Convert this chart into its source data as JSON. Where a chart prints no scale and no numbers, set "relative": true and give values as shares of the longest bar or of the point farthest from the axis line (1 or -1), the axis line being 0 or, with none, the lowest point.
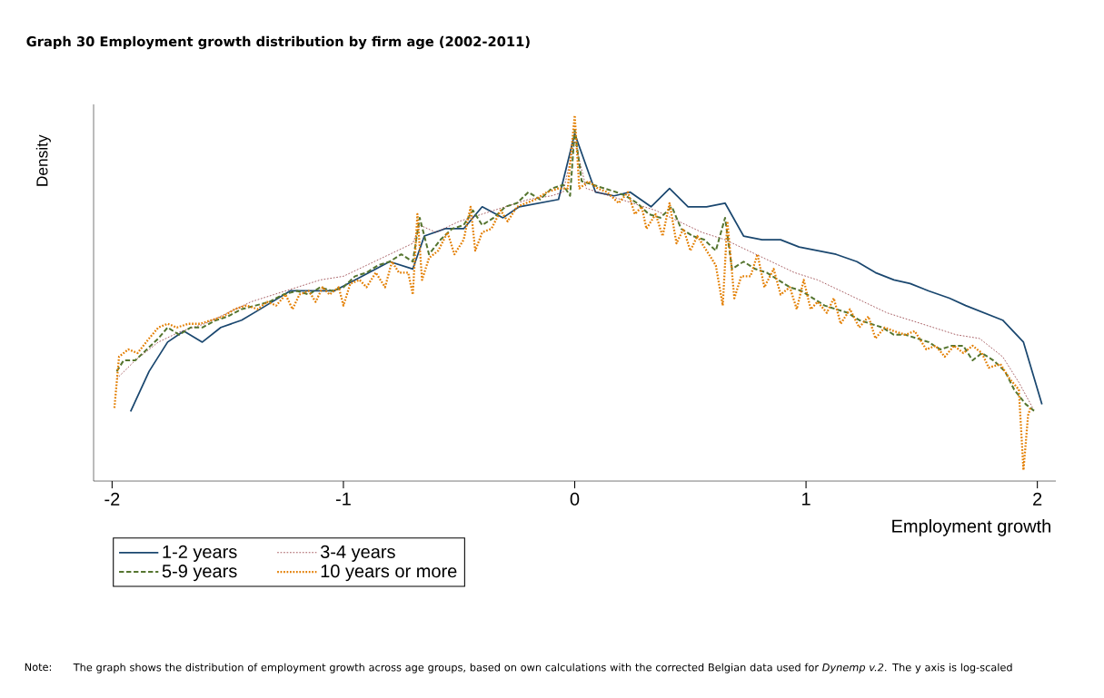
{
  "chart_data": {
    "type": "line",
    "title": "**Graph 30    Employment growth distribution by firm age (2002-2011)**",
    "xlabel": "Employment growth",
    "ylabel": "Density",
    "relative": true,
    "xlim": [
      -2.08,
      2.08
    ],
    "xticks": [
      -2,
      -1,
      0,
      1,
      2
    ],
    "legend": "bottom",
    "marker": "none",
    "annotations": [
      "Note:",
      "The graph shows the distribution of employment growth across age groups, based on own calculations with the corrected Belgian data used for *Dynemp v.2*. The y axis is log-scaled"
    ],
    "series": [
      {
        "name": "1-2 years",
        "color": "#1a476f",
        "line_style": "solid",
        "x": [
          -1.92,
          -1.84,
          -1.76,
          -1.69,
          -1.61,
          -1.53,
          -1.44,
          -1.36,
          -1.23,
          -1.04,
          -0.95,
          -0.8,
          -0.7,
          -0.65,
          -0.56,
          -0.48,
          -0.4,
          -0.31,
          -0.24,
          -0.07,
          0,
          0.09,
          0.17,
          0.24,
          0.33,
          0.41,
          0.49,
          0.57,
          0.65,
          0.73,
          0.81,
          0.89,
          0.97,
          1.05,
          1.13,
          1.22,
          1.3,
          1.38,
          1.45,
          1.53,
          1.62,
          1.69,
          1.77,
          1.85,
          1.94,
          2.02
        ],
        "values": [
          0.19,
          0.3,
          0.38,
          0.41,
          0.38,
          0.42,
          0.44,
          0.47,
          0.52,
          0.52,
          0.55,
          0.6,
          0.58,
          0.67,
          0.69,
          0.69,
          0.75,
          0.72,
          0.75,
          0.77,
          0.95,
          0.79,
          0.78,
          0.79,
          0.75,
          0.8,
          0.75,
          0.75,
          0.76,
          0.67,
          0.66,
          0.66,
          0.64,
          0.63,
          0.62,
          0.6,
          0.57,
          0.55,
          0.54,
          0.52,
          0.5,
          0.48,
          0.46,
          0.44,
          0.38,
          0.21
        ]
      },
      {
        "name": "3-4 years",
        "color": "#90353b",
        "line_style": "dotted",
        "x": [
          -1.98,
          -1.9,
          -1.8,
          -1.7,
          -1.6,
          -1.5,
          -1.4,
          -1.3,
          -1.2,
          -1.1,
          -1.0,
          -0.9,
          -0.8,
          -0.7,
          -0.67,
          -0.6,
          -0.5,
          -0.4,
          -0.3,
          -0.2,
          -0.1,
          -0.05,
          0,
          0.05,
          0.15,
          0.25,
          0.35,
          0.45,
          0.55,
          0.65,
          0.75,
          0.85,
          0.95,
          1.05,
          1.15,
          1.25,
          1.35,
          1.45,
          1.55,
          1.65,
          1.75,
          1.85,
          1.92,
          1.98
        ],
        "values": [
          0.28,
          0.33,
          0.38,
          0.41,
          0.43,
          0.46,
          0.49,
          0.51,
          0.53,
          0.55,
          0.56,
          0.59,
          0.62,
          0.65,
          0.7,
          0.68,
          0.71,
          0.73,
          0.75,
          0.77,
          0.78,
          0.79,
          0.93,
          0.8,
          0.78,
          0.76,
          0.74,
          0.71,
          0.68,
          0.66,
          0.63,
          0.6,
          0.57,
          0.55,
          0.52,
          0.49,
          0.46,
          0.44,
          0.42,
          0.4,
          0.39,
          0.34,
          0.27,
          0.2
        ]
      },
      {
        "name": "5-9 years",
        "color": "#55752f",
        "line_style": "dashed",
        "x": [
          -1.98,
          -1.95,
          -1.9,
          -1.85,
          -1.8,
          -1.76,
          -1.71,
          -1.66,
          -1.61,
          -1.55,
          -1.5,
          -1.44,
          -1.38,
          -1.32,
          -1.26,
          -1.2,
          -1.15,
          -1.1,
          -1.05,
          -1.0,
          -0.95,
          -0.9,
          -0.85,
          -0.8,
          -0.75,
          -0.7,
          -0.67,
          -0.63,
          -0.58,
          -0.53,
          -0.48,
          -0.44,
          -0.4,
          -0.35,
          -0.3,
          -0.25,
          -0.2,
          -0.15,
          -0.1,
          -0.05,
          -0.02,
          0,
          0.03,
          0.08,
          0.13,
          0.18,
          0.22,
          0.27,
          0.32,
          0.37,
          0.42,
          0.46,
          0.51,
          0.56,
          0.61,
          0.65,
          0.68,
          0.73,
          0.78,
          0.83,
          0.88,
          0.93,
          0.98,
          1.03,
          1.08,
          1.13,
          1.18,
          1.23,
          1.28,
          1.33,
          1.38,
          1.43,
          1.48,
          1.53,
          1.58,
          1.63,
          1.68,
          1.72,
          1.76,
          1.81,
          1.86,
          1.9,
          1.95,
          1.99
        ],
        "values": [
          0.3,
          0.33,
          0.33,
          0.36,
          0.39,
          0.42,
          0.4,
          0.42,
          0.42,
          0.44,
          0.45,
          0.47,
          0.48,
          0.49,
          0.51,
          0.52,
          0.51,
          0.53,
          0.52,
          0.53,
          0.56,
          0.57,
          0.59,
          0.6,
          0.62,
          0.6,
          0.72,
          0.62,
          0.66,
          0.69,
          0.7,
          0.74,
          0.7,
          0.72,
          0.75,
          0.76,
          0.79,
          0.77,
          0.8,
          0.81,
          0.78,
          0.96,
          0.82,
          0.81,
          0.8,
          0.79,
          0.78,
          0.76,
          0.73,
          0.72,
          0.75,
          0.69,
          0.67,
          0.66,
          0.63,
          0.72,
          0.58,
          0.6,
          0.58,
          0.57,
          0.55,
          0.53,
          0.52,
          0.5,
          0.48,
          0.47,
          0.46,
          0.44,
          0.43,
          0.42,
          0.4,
          0.4,
          0.39,
          0.38,
          0.36,
          0.37,
          0.37,
          0.33,
          0.35,
          0.33,
          0.3,
          0.25,
          0.21,
          0.19
        ]
      },
      {
        "name": "10 years or more",
        "color": "#e37e00",
        "line_style": "dotted",
        "x": [
          -1.99,
          -1.97,
          -1.93,
          -1.89,
          -1.84,
          -1.8,
          -1.76,
          -1.72,
          -1.67,
          -1.62,
          -1.57,
          -1.52,
          -1.47,
          -1.42,
          -1.37,
          -1.33,
          -1.29,
          -1.25,
          -1.22,
          -1.19,
          -1.15,
          -1.12,
          -1.09,
          -1.06,
          -1.02,
          -1.0,
          -0.97,
          -0.93,
          -0.9,
          -0.86,
          -0.82,
          -0.79,
          -0.76,
          -0.72,
          -0.7,
          -0.68,
          -0.66,
          -0.63,
          -0.59,
          -0.55,
          -0.52,
          -0.48,
          -0.45,
          -0.43,
          -0.4,
          -0.36,
          -0.32,
          -0.29,
          -0.25,
          -0.21,
          -0.17,
          -0.12,
          -0.07,
          -0.03,
          0,
          0.02,
          0.06,
          0.1,
          0.14,
          0.19,
          0.23,
          0.26,
          0.29,
          0.31,
          0.35,
          0.38,
          0.41,
          0.44,
          0.47,
          0.5,
          0.53,
          0.57,
          0.61,
          0.64,
          0.66,
          0.69,
          0.72,
          0.76,
          0.79,
          0.82,
          0.86,
          0.89,
          0.93,
          0.96,
          0.99,
          1.02,
          1.05,
          1.09,
          1.12,
          1.15,
          1.19,
          1.23,
          1.27,
          1.3,
          1.34,
          1.38,
          1.43,
          1.47,
          1.52,
          1.56,
          1.6,
          1.64,
          1.68,
          1.72,
          1.76,
          1.79,
          1.84,
          1.88,
          1.92,
          1.94,
          1.96,
          1.97
        ],
        "values": [
          0.2,
          0.34,
          0.36,
          0.35,
          0.39,
          0.42,
          0.43,
          0.42,
          0.43,
          0.43,
          0.44,
          0.45,
          0.47,
          0.48,
          0.47,
          0.49,
          0.48,
          0.51,
          0.47,
          0.51,
          0.52,
          0.49,
          0.53,
          0.51,
          0.53,
          0.48,
          0.54,
          0.55,
          0.53,
          0.57,
          0.53,
          0.6,
          0.57,
          0.57,
          0.51,
          0.73,
          0.55,
          0.61,
          0.63,
          0.68,
          0.62,
          0.66,
          0.75,
          0.63,
          0.68,
          0.69,
          0.74,
          0.71,
          0.75,
          0.76,
          0.77,
          0.79,
          0.8,
          0.8,
          1.0,
          0.8,
          0.82,
          0.8,
          0.79,
          0.76,
          0.79,
          0.73,
          0.75,
          0.69,
          0.73,
          0.67,
          0.76,
          0.65,
          0.69,
          0.63,
          0.67,
          0.63,
          0.59,
          0.48,
          0.71,
          0.5,
          0.56,
          0.56,
          0.62,
          0.53,
          0.58,
          0.51,
          0.53,
          0.47,
          0.55,
          0.47,
          0.49,
          0.46,
          0.5,
          0.43,
          0.47,
          0.42,
          0.45,
          0.39,
          0.42,
          0.41,
          0.4,
          0.41,
          0.36,
          0.37,
          0.34,
          0.37,
          0.35,
          0.37,
          0.35,
          0.31,
          0.32,
          0.28,
          0.25,
          0.03,
          0.18,
          0.2
        ]
      }
    ]
  }
}
